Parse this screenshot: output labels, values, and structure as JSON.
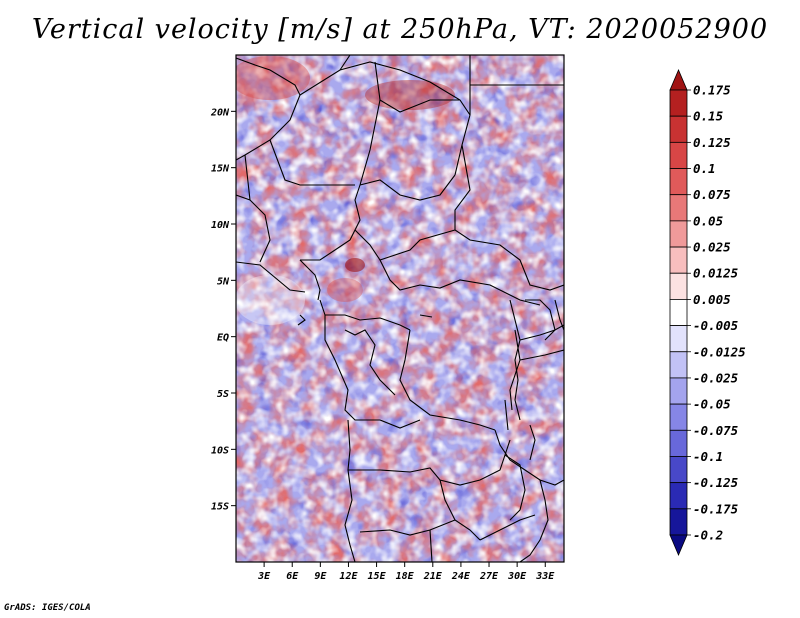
{
  "title": "Vertical velocity [m/s] at 250hPa, VT: 2020052900",
  "credit": "GrADS: IGES/COLA",
  "map": {
    "region": "Central Africa",
    "lon_range": [
      0,
      35
    ],
    "lat_range": [
      -20,
      25
    ],
    "lon_ticks": [
      "3E",
      "6E",
      "9E",
      "12E",
      "15E",
      "18E",
      "21E",
      "24E",
      "27E",
      "30E",
      "33E"
    ],
    "lat_ticks": [
      "20N",
      "15N",
      "10N",
      "5N",
      "EQ",
      "5S",
      "10S",
      "15S"
    ]
  },
  "colorbar": {
    "levels": [
      "0.175",
      "0.15",
      "0.125",
      "0.1",
      "0.075",
      "0.05",
      "0.025",
      "0.0125",
      "0.005",
      "-0.005",
      "-0.0125",
      "-0.025",
      "-0.05",
      "-0.075",
      "-0.1",
      "-0.125",
      "-0.175",
      "-0.2"
    ],
    "colors": [
      "#a01414",
      "#b42020",
      "#c83232",
      "#d84646",
      "#e05a5a",
      "#e87878",
      "#f09a9a",
      "#f8bebe",
      "#fce2e2",
      "#ffffff",
      "#e2e2fc",
      "#c2c2f6",
      "#a4a4ee",
      "#8686e6",
      "#6868da",
      "#4848c8",
      "#2a2ab4",
      "#16169a",
      "#0a0a82"
    ]
  }
}
